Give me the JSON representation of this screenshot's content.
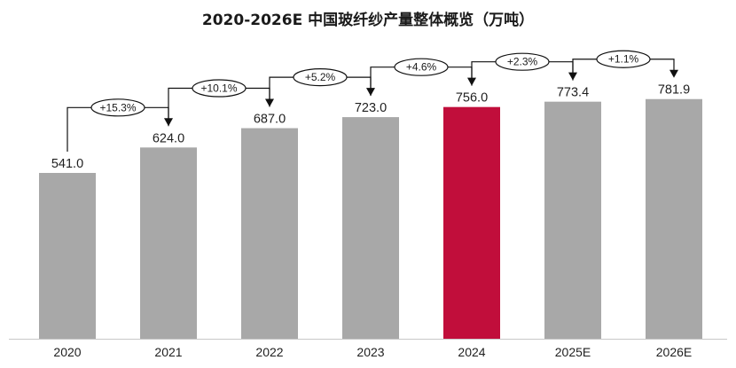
{
  "chart_data": {
    "type": "bar",
    "title": "2020-2026E 中国玻纤纱产量整体概览（万吨）",
    "categories": [
      "2020",
      "2021",
      "2022",
      "2023",
      "2024",
      "2025E",
      "2026E"
    ],
    "values": [
      541.0,
      624.0,
      687.0,
      723.0,
      756.0,
      773.4,
      781.9
    ],
    "data_labels": [
      "541.0",
      "624.0",
      "687.0",
      "723.0",
      "756.0",
      "773.4",
      "781.9"
    ],
    "growth_labels": [
      "+15.3%",
      "+10.1%",
      "+5.2%",
      "+4.6%",
      "+2.3%",
      "+1.1%"
    ],
    "highlight_category": "2024",
    "grid": false,
    "legend": "none",
    "colors": {
      "bar": "#a8a8a8",
      "highlight": "#c10e3b",
      "axis": "#c8c8c8",
      "annotation": "#111111"
    }
  }
}
